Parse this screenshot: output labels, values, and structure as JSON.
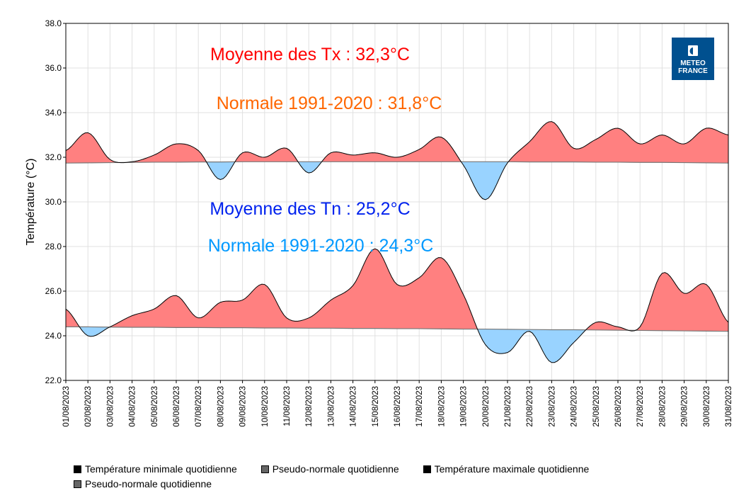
{
  "chart_data": {
    "type": "area",
    "ylabel": "Température (°C)",
    "ylim": [
      22,
      38
    ],
    "yticks": [
      "22.0",
      "24.0",
      "26.0",
      "28.0",
      "30.0",
      "32.0",
      "34.0",
      "36.0",
      "38.0"
    ],
    "grid": true,
    "x": [
      "01/08/2023",
      "02/08/2023",
      "03/08/2023",
      "04/08/2023",
      "05/08/2023",
      "06/08/2023",
      "07/08/2023",
      "08/08/2023",
      "09/08/2023",
      "10/08/2023",
      "11/08/2023",
      "12/08/2023",
      "13/08/2023",
      "14/08/2023",
      "15/08/2023",
      "16/08/2023",
      "17/08/2023",
      "18/08/2023",
      "19/08/2023",
      "20/08/2023",
      "21/08/2023",
      "22/08/2023",
      "23/08/2023",
      "24/08/2023",
      "25/08/2023",
      "26/08/2023",
      "27/08/2023",
      "28/08/2023",
      "29/08/2023",
      "30/08/2023",
      "31/08/2023"
    ],
    "series": [
      {
        "name": "Température minimale quotidienne",
        "values": [
          25.2,
          24.0,
          24.4,
          24.9,
          25.2,
          25.8,
          24.8,
          25.5,
          25.6,
          26.3,
          24.8,
          24.8,
          25.6,
          26.25,
          27.9,
          26.3,
          26.6,
          27.5,
          25.85,
          23.6,
          23.25,
          24.2,
          22.8,
          23.7,
          24.6,
          24.4,
          24.4,
          26.8,
          25.9,
          26.3,
          24.6
        ]
      },
      {
        "name": "Pseudo-normale quotidienne",
        "values": [
          24.4,
          24.4,
          24.39,
          24.38,
          24.38,
          24.37,
          24.37,
          24.36,
          24.36,
          24.35,
          24.35,
          24.34,
          24.34,
          24.33,
          24.33,
          24.32,
          24.32,
          24.31,
          24.3,
          24.3,
          24.29,
          24.28,
          24.27,
          24.27,
          24.26,
          24.25,
          24.24,
          24.23,
          24.22,
          24.21,
          24.2
        ]
      },
      {
        "name": "Température maximale quotidienne",
        "values": [
          32.3,
          33.1,
          31.9,
          31.8,
          32.1,
          32.6,
          32.3,
          31.0,
          32.2,
          32.0,
          32.4,
          31.3,
          32.2,
          32.1,
          32.2,
          32.0,
          32.35,
          32.9,
          31.65,
          30.1,
          31.75,
          32.7,
          33.6,
          32.4,
          32.8,
          33.3,
          32.6,
          33.0,
          32.6,
          33.3,
          33.0
        ]
      },
      {
        "name": "Pseudo-normale quotidienne",
        "values": [
          31.74,
          31.75,
          31.76,
          31.77,
          31.78,
          31.78,
          31.79,
          31.79,
          31.8,
          31.8,
          31.8,
          31.8,
          31.8,
          31.8,
          31.8,
          31.8,
          31.8,
          31.8,
          31.8,
          31.8,
          31.8,
          31.79,
          31.79,
          31.79,
          31.78,
          31.78,
          31.77,
          31.77,
          31.76,
          31.75,
          31.74
        ]
      }
    ],
    "annotations": [
      {
        "text": "Moyenne des Tx : 32,3°C",
        "color": "#ff0000"
      },
      {
        "text": "Normale 1991-2020 : 31,8°C",
        "color": "#ff6600"
      },
      {
        "text": "Moyenne des Tn : 25,2°C",
        "color": "#0022ee"
      },
      {
        "text": "Normale 1991-2020 : 24,3°C",
        "color": "#0099ff"
      }
    ],
    "legend_placement": "bottom",
    "colors": {
      "above": "#ff8080",
      "below": "#99d3ff",
      "curve": "#000000",
      "normal": "#777777"
    }
  },
  "logo": {
    "line1": "METEO",
    "line2": "FRANCE",
    "color": "#00508f"
  }
}
